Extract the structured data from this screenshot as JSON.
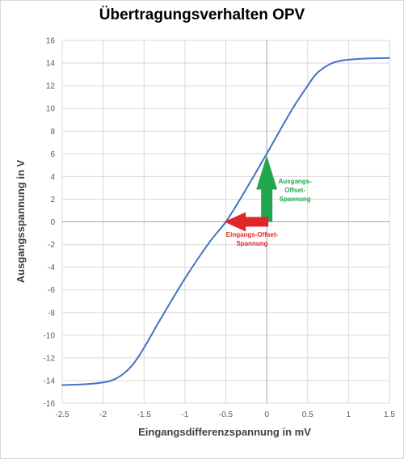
{
  "chart_data": {
    "type": "line",
    "title": "Übertragungsverhalten OPV",
    "xlabel": "Eingangsdifferenzspannung in mV",
    "ylabel": "Ausgangsspannung in V",
    "xlim": [
      -2.5,
      1.5
    ],
    "ylim": [
      -16,
      16
    ],
    "x_ticks": [
      -2.5,
      -2,
      -1.5,
      -1,
      -0.5,
      0,
      0.5,
      1,
      1.5
    ],
    "x_tick_labels": [
      "-2.5",
      "-2",
      "-1.5",
      "-1",
      "-0.5",
      "0",
      "0.5",
      "1",
      "1.5"
    ],
    "y_ticks": [
      -16,
      -14,
      -12,
      -10,
      -8,
      -6,
      -4,
      -2,
      0,
      2,
      4,
      6,
      8,
      10,
      12,
      14,
      16
    ],
    "y_tick_labels": [
      "-16",
      "-14",
      "-12",
      "-10",
      "-8",
      "-6",
      "-4",
      "-2",
      "0",
      "2",
      "4",
      "6",
      "8",
      "10",
      "12",
      "14",
      "16"
    ],
    "grid": true,
    "series": [
      {
        "color": "#4472c4",
        "x": [
          -2.5,
          -2.3,
          -2.1,
          -1.95,
          -1.85,
          -1.75,
          -1.65,
          -1.55,
          -1.45,
          -1.3,
          -1.0,
          -0.7,
          -0.5,
          -0.3,
          0.0,
          0.3,
          0.5,
          0.6,
          0.7,
          0.8,
          0.9,
          1.0,
          1.2,
          1.5
        ],
        "y": [
          -14.4,
          -14.35,
          -14.25,
          -14.1,
          -13.85,
          -13.4,
          -12.7,
          -11.7,
          -10.5,
          -8.6,
          -5.0,
          -1.8,
          0.0,
          2.3,
          6.0,
          9.8,
          12.0,
          13.0,
          13.6,
          14.0,
          14.2,
          14.3,
          14.4,
          14.45
        ]
      }
    ],
    "annotations": [
      {
        "text_lines": [
          "Ausgangs-",
          "Offset-",
          "Spannung"
        ],
        "color": "#21a84e",
        "arrow": {
          "from": [
            0,
            0
          ],
          "to": [
            0,
            6
          ]
        }
      },
      {
        "text_lines": [
          "Eingangs-Offset-",
          "Spannung"
        ],
        "color": "#e02626",
        "arrow": {
          "from": [
            0,
            0
          ],
          "to": [
            -0.5,
            0
          ]
        }
      }
    ]
  }
}
